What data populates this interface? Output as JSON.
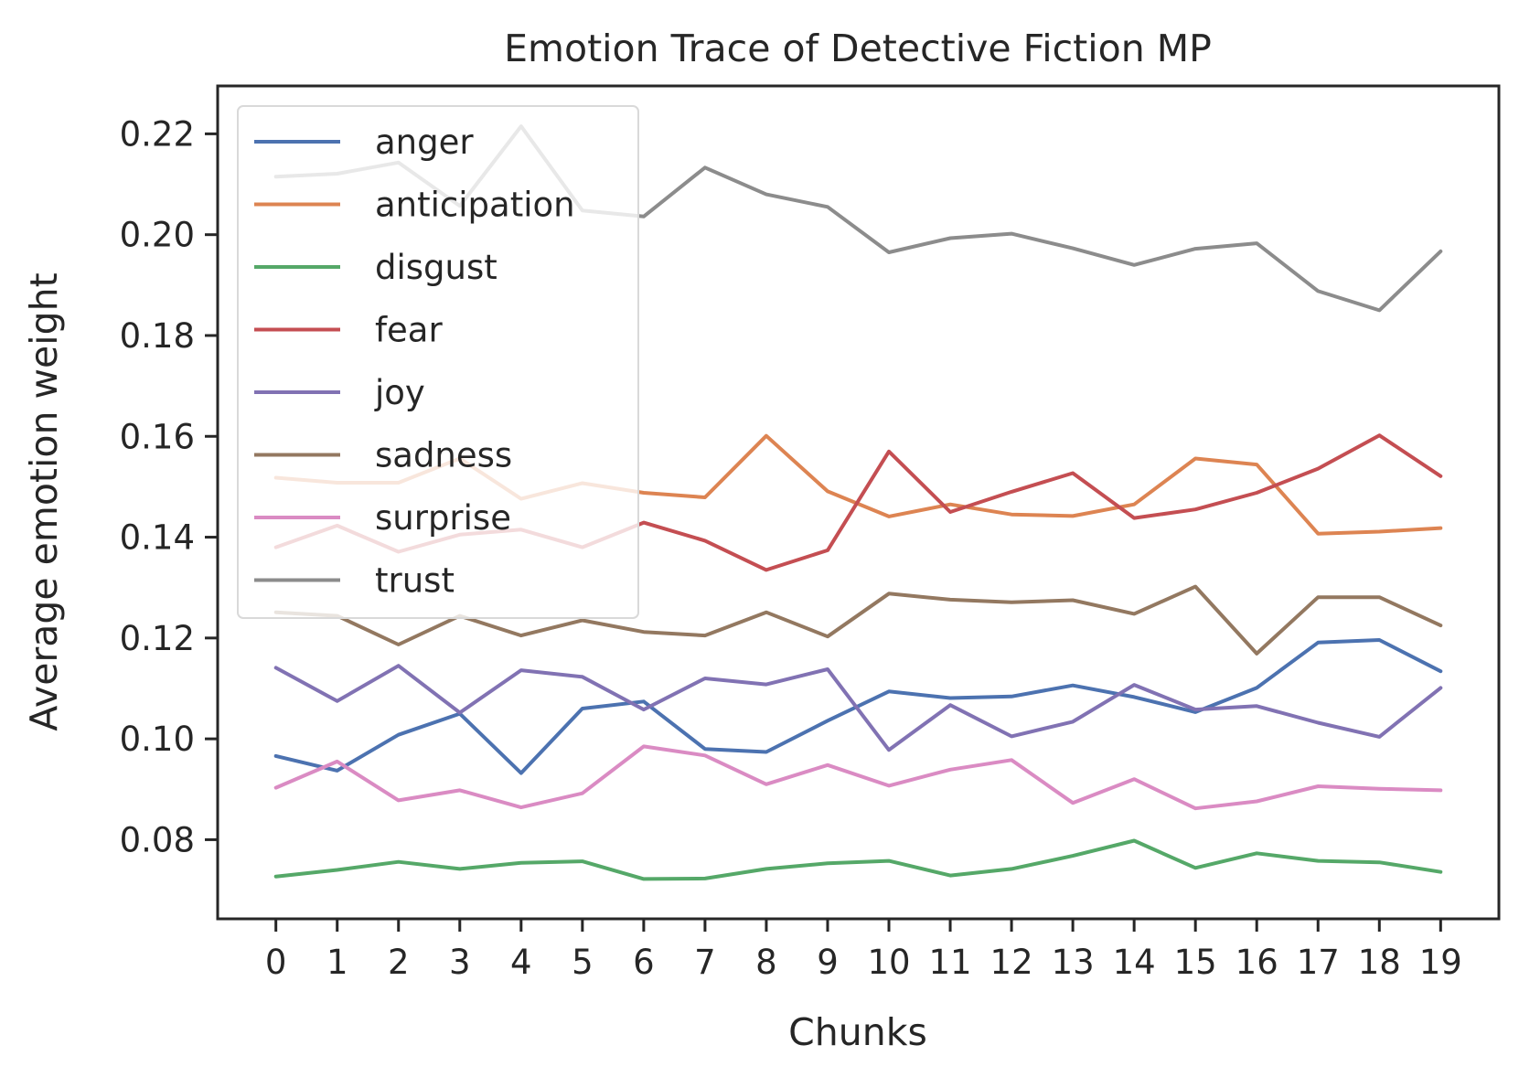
{
  "chart_data": {
    "type": "line",
    "title": "Emotion Trace of Detective Fiction MP",
    "xlabel": "Chunks",
    "ylabel": "Average emotion weight",
    "x": [
      0,
      1,
      2,
      3,
      4,
      5,
      6,
      7,
      8,
      9,
      10,
      11,
      12,
      13,
      14,
      15,
      16,
      17,
      18,
      19
    ],
    "x_ticks": [
      "0",
      "1",
      "2",
      "3",
      "4",
      "5",
      "6",
      "7",
      "8",
      "9",
      "10",
      "11",
      "12",
      "13",
      "14",
      "15",
      "16",
      "17",
      "18",
      "19"
    ],
    "y_ticks": [
      0.08,
      0.1,
      0.12,
      0.14,
      0.16,
      0.18,
      0.2,
      0.22
    ],
    "y_tick_labels": [
      "0.08",
      "0.10",
      "0.12",
      "0.14",
      "0.16",
      "0.18",
      "0.20",
      "0.22"
    ],
    "xlim": [
      -0.95,
      19.95
    ],
    "ylim": [
      0.0643,
      0.2295
    ],
    "grid": false,
    "legend_position": "top-left",
    "series": [
      {
        "name": "anger",
        "color": "#4c72b0",
        "values": [
          0.0966,
          0.0937,
          0.1008,
          0.105,
          0.0932,
          0.106,
          0.1074,
          0.098,
          0.0974,
          0.1036,
          0.1094,
          0.1081,
          0.1084,
          0.1106,
          0.1083,
          0.1053,
          0.1101,
          0.1191,
          0.1196,
          0.1134
        ]
      },
      {
        "name": "anticipation",
        "color": "#dd8452",
        "values": [
          0.1518,
          0.1508,
          0.1508,
          0.1556,
          0.1476,
          0.1507,
          0.1488,
          0.1479,
          0.1601,
          0.1491,
          0.1441,
          0.1465,
          0.1445,
          0.1442,
          0.1465,
          0.1556,
          0.1544,
          0.1407,
          0.1411,
          0.1418
        ]
      },
      {
        "name": "disgust",
        "color": "#55a868",
        "values": [
          0.0727,
          0.074,
          0.0756,
          0.0742,
          0.0754,
          0.0757,
          0.0722,
          0.0723,
          0.0742,
          0.0753,
          0.0758,
          0.0729,
          0.0742,
          0.0768,
          0.0798,
          0.0744,
          0.0773,
          0.0758,
          0.0755,
          0.0736
        ]
      },
      {
        "name": "fear",
        "color": "#c44e52",
        "values": [
          0.138,
          0.1423,
          0.1371,
          0.1405,
          0.1415,
          0.138,
          0.1429,
          0.1393,
          0.1335,
          0.1374,
          0.157,
          0.145,
          0.149,
          0.1527,
          0.1438,
          0.1455,
          0.1488,
          0.1536,
          0.1602,
          0.1521
        ]
      },
      {
        "name": "joy",
        "color": "#8172b3",
        "values": [
          0.1141,
          0.1075,
          0.1145,
          0.1052,
          0.1136,
          0.1123,
          0.1058,
          0.112,
          0.1108,
          0.1138,
          0.0978,
          0.1067,
          0.1005,
          0.1034,
          0.1107,
          0.1058,
          0.1065,
          0.1032,
          0.1004,
          0.1101
        ]
      },
      {
        "name": "sadness",
        "color": "#937860",
        "values": [
          0.1251,
          0.1244,
          0.1187,
          0.1244,
          0.1205,
          0.1235,
          0.1212,
          0.1205,
          0.1251,
          0.1203,
          0.1288,
          0.1276,
          0.1271,
          0.1275,
          0.1248,
          0.1302,
          0.1169,
          0.1281,
          0.1281,
          0.1225
        ]
      },
      {
        "name": "surprise",
        "color": "#da8bc3",
        "values": [
          0.0903,
          0.0955,
          0.0878,
          0.0898,
          0.0864,
          0.0892,
          0.0985,
          0.0967,
          0.091,
          0.0948,
          0.0907,
          0.0939,
          0.0958,
          0.0873,
          0.092,
          0.0862,
          0.0876,
          0.0906,
          0.0901,
          0.0898
        ]
      },
      {
        "name": "trust",
        "color": "#8c8c8c",
        "values": [
          0.2115,
          0.2121,
          0.2143,
          0.2057,
          0.2215,
          0.2048,
          0.2036,
          0.2133,
          0.208,
          0.2055,
          0.1965,
          0.1993,
          0.2002,
          0.1973,
          0.194,
          0.1972,
          0.1983,
          0.1888,
          0.185,
          0.1967
        ]
      }
    ]
  }
}
